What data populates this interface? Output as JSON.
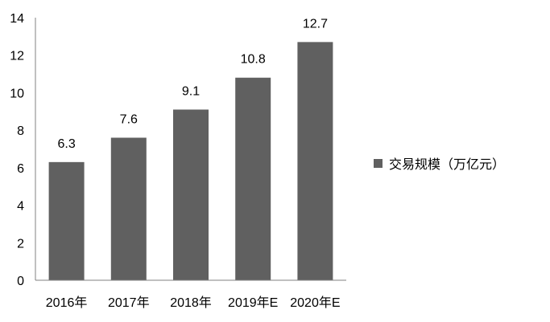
{
  "chart_data": {
    "type": "bar",
    "categories": [
      "2016年",
      "2017年",
      "2018年",
      "2019年E",
      "2020年E"
    ],
    "series": [
      {
        "name": "交易规模（万亿元）",
        "values": [
          6.3,
          7.6,
          9.1,
          10.8,
          12.7
        ]
      }
    ],
    "data_labels": [
      "6.3",
      "7.6",
      "9.1",
      "10.8",
      "12.7"
    ],
    "ylim": [
      0,
      14
    ],
    "yticks": [
      0,
      2,
      4,
      6,
      8,
      10,
      12,
      14
    ],
    "grid": false,
    "legend_position": "right",
    "bar_color": "#606060",
    "axis_color": "#808080"
  }
}
